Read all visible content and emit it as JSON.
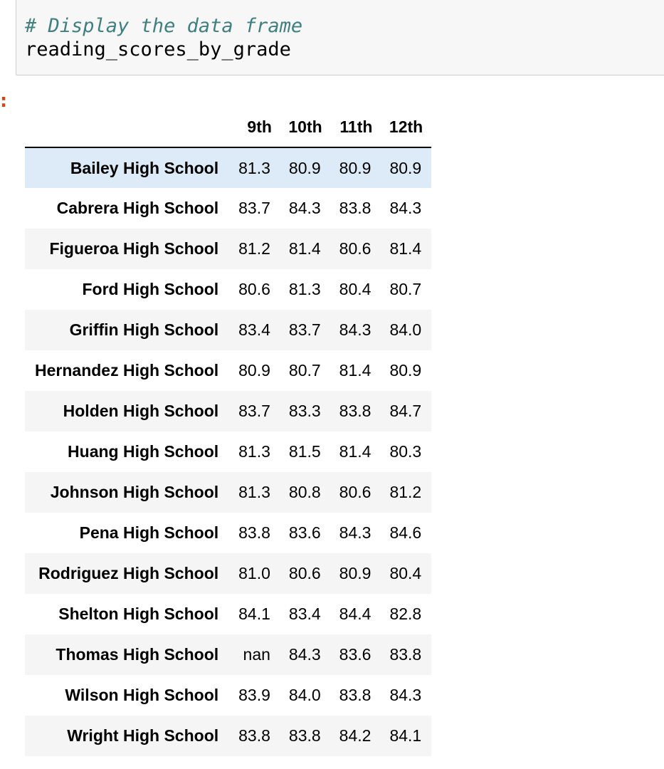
{
  "cell": {
    "comment": "# Display the data frame",
    "code": "reading_scores_by_grade"
  },
  "output": {
    "prompt": ":"
  },
  "table": {
    "columns": [
      "9th",
      "10th",
      "11th",
      "12th"
    ],
    "rows": [
      {
        "school": "Bailey High School",
        "values": [
          "81.3",
          "80.9",
          "80.9",
          "80.9"
        ]
      },
      {
        "school": "Cabrera High School",
        "values": [
          "83.7",
          "84.3",
          "83.8",
          "84.3"
        ]
      },
      {
        "school": "Figueroa High School",
        "values": [
          "81.2",
          "81.4",
          "80.6",
          "81.4"
        ]
      },
      {
        "school": "Ford High School",
        "values": [
          "80.6",
          "81.3",
          "80.4",
          "80.7"
        ]
      },
      {
        "school": "Griffin High School",
        "values": [
          "83.4",
          "83.7",
          "84.3",
          "84.0"
        ]
      },
      {
        "school": "Hernandez High School",
        "values": [
          "80.9",
          "80.7",
          "81.4",
          "80.9"
        ]
      },
      {
        "school": "Holden High School",
        "values": [
          "83.7",
          "83.3",
          "83.8",
          "84.7"
        ]
      },
      {
        "school": "Huang High School",
        "values": [
          "81.3",
          "81.5",
          "81.4",
          "80.3"
        ]
      },
      {
        "school": "Johnson High School",
        "values": [
          "81.3",
          "80.8",
          "80.6",
          "81.2"
        ]
      },
      {
        "school": "Pena High School",
        "values": [
          "83.8",
          "83.6",
          "84.3",
          "84.6"
        ]
      },
      {
        "school": "Rodriguez High School",
        "values": [
          "81.0",
          "80.6",
          "80.9",
          "80.4"
        ]
      },
      {
        "school": "Shelton High School",
        "values": [
          "84.1",
          "83.4",
          "84.4",
          "82.8"
        ]
      },
      {
        "school": "Thomas High School",
        "values": [
          "nan",
          "84.3",
          "83.6",
          "83.8"
        ]
      },
      {
        "school": "Wilson High School",
        "values": [
          "83.9",
          "84.0",
          "83.8",
          "84.3"
        ]
      },
      {
        "school": "Wright High School",
        "values": [
          "83.8",
          "83.8",
          "84.2",
          "84.1"
        ]
      }
    ]
  },
  "colors": {
    "comment": "#408080",
    "prompt": "#d84315",
    "row_hover": "#dcebf7",
    "row_stripe": "#f5f5f5"
  }
}
